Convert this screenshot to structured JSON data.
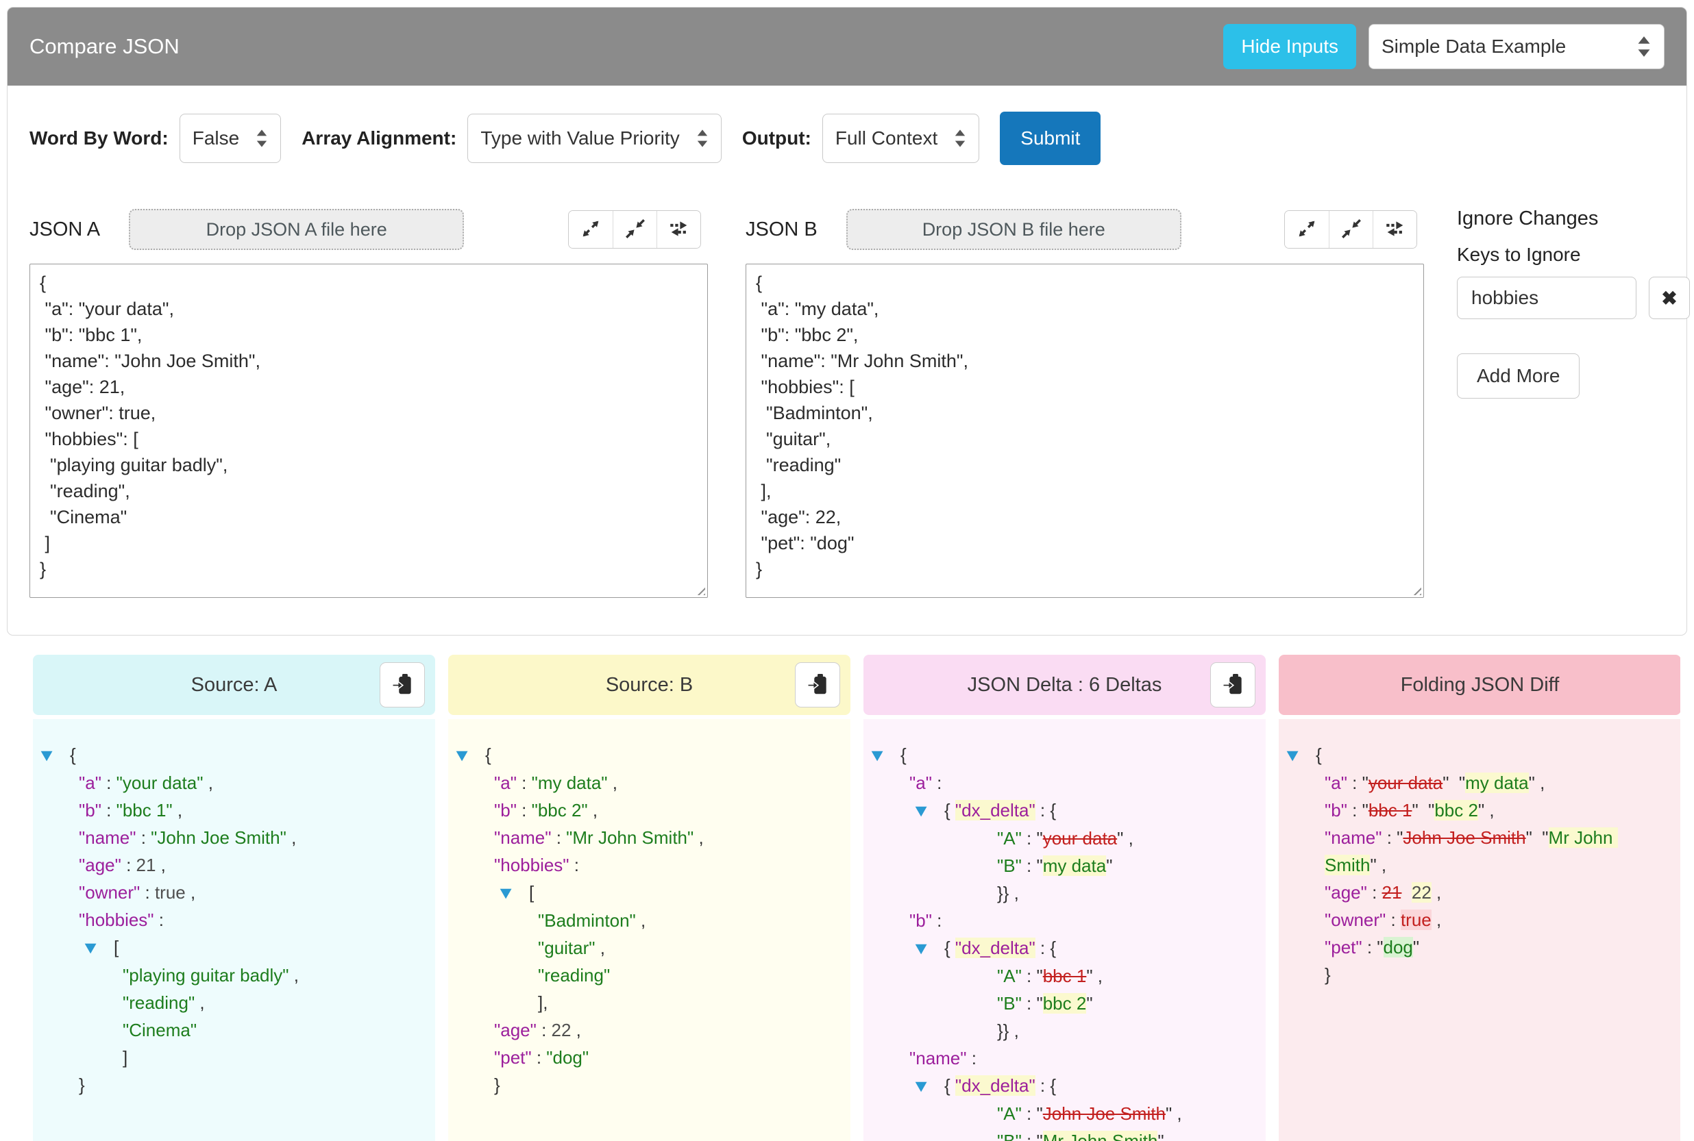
{
  "header": {
    "title": "Compare JSON",
    "hide_inputs": "Hide Inputs",
    "example_value": "Simple Data Example"
  },
  "controls": {
    "word_label": "Word By Word:",
    "word_value": "False",
    "array_label": "Array Alignment:",
    "array_value": "Type with Value Priority",
    "output_label": "Output:",
    "output_value": "Full Context",
    "submit": "Submit"
  },
  "json_a": {
    "label": "JSON A",
    "dropzone": "Drop JSON A file here",
    "content": "{\n \"a\": \"your data\",\n \"b\": \"bbc 1\",\n \"name\": \"John Joe Smith\",\n \"age\": 21,\n \"owner\": true,\n \"hobbies\": [\n  \"playing guitar badly\",\n  \"reading\",\n  \"Cinema\"\n ]\n}"
  },
  "json_b": {
    "label": "JSON B",
    "dropzone": "Drop JSON B file here",
    "content": "{\n \"a\": \"my data\",\n \"b\": \"bbc 2\",\n \"name\": \"Mr John Smith\",\n \"hobbies\": [\n  \"Badminton\",\n  \"guitar\",\n  \"reading\"\n ],\n \"age\": 22,\n \"pet\": \"dog\"\n}"
  },
  "ignore": {
    "title": "Ignore Changes",
    "keys_label": "Keys to Ignore",
    "value": "hobbies",
    "remove_glyph": "✖",
    "add_more": "Add More"
  },
  "panels": {
    "source_a": {
      "title": "Source: A"
    },
    "source_b": {
      "title": "Source: B"
    },
    "delta": {
      "title": "JSON Delta : 6 Deltas",
      "delta_count": 6
    },
    "folding": {
      "title": "Folding JSON Diff"
    }
  },
  "icons": {
    "fold": "▼",
    "expand": "expand-diagonal-arrows",
    "collapse": "collapse-diagonal-arrows",
    "swap": "swap-horizontal-arrows",
    "copy": "clipboard-arrow",
    "select": "up-down-arrows"
  },
  "colors": {
    "titlebar": "#8b8b8b",
    "hide_inputs": "#2cc0e9",
    "submit": "#1577bb",
    "source_a_header": "#d9f6f8",
    "source_b_header": "#fcf8c9",
    "delta_header": "#fadcf3",
    "folding_header": "#f8bfca",
    "key": "#9c1f9c",
    "string": "#1d7d1d",
    "deleted": "#c3201f",
    "highlight_yellow": "#fbf9cf",
    "highlight_green": "#d9f3d2",
    "highlight_red": "#fbd6da",
    "fold_triangle": "#2a9ad3"
  },
  "trees": {
    "source_a": [
      {
        "d": 0,
        "f": true,
        "t": [
          {
            "c": "p",
            "v": "{"
          }
        ]
      },
      {
        "d": 1,
        "t": [
          {
            "c": "k",
            "v": "\"a\""
          },
          {
            "c": "p",
            "v": " : "
          },
          {
            "c": "s",
            "v": "\"your data\""
          },
          {
            "c": "p",
            "v": " ,"
          }
        ]
      },
      {
        "d": 1,
        "t": [
          {
            "c": "k",
            "v": "\"b\""
          },
          {
            "c": "p",
            "v": " : "
          },
          {
            "c": "s",
            "v": "\"bbc 1\""
          },
          {
            "c": "p",
            "v": " ,"
          }
        ]
      },
      {
        "d": 1,
        "t": [
          {
            "c": "k",
            "v": "\"name\""
          },
          {
            "c": "p",
            "v": " : "
          },
          {
            "c": "s",
            "v": "\"John Joe Smith\""
          },
          {
            "c": "p",
            "v": " ,"
          }
        ]
      },
      {
        "d": 1,
        "t": [
          {
            "c": "k",
            "v": "\"age\""
          },
          {
            "c": "p",
            "v": " : "
          },
          {
            "c": "n",
            "v": "21"
          },
          {
            "c": "p",
            "v": " ,"
          }
        ]
      },
      {
        "d": 1,
        "t": [
          {
            "c": "k",
            "v": "\"owner\""
          },
          {
            "c": "p",
            "v": " : "
          },
          {
            "c": "n",
            "v": "true"
          },
          {
            "c": "p",
            "v": " ,"
          }
        ]
      },
      {
        "d": 1,
        "t": [
          {
            "c": "k",
            "v": "\"hobbies\""
          },
          {
            "c": "p",
            "v": " :"
          }
        ]
      },
      {
        "d": 1,
        "f": true,
        "t": [
          {
            "c": "p",
            "v": "["
          }
        ]
      },
      {
        "d": 2,
        "t": [
          {
            "c": "s",
            "v": "\"playing guitar badly\""
          },
          {
            "c": "p",
            "v": " ,"
          }
        ]
      },
      {
        "d": 2,
        "t": [
          {
            "c": "s",
            "v": "\"reading\""
          },
          {
            "c": "p",
            "v": " ,"
          }
        ]
      },
      {
        "d": 2,
        "t": [
          {
            "c": "s",
            "v": "\"Cinema\""
          }
        ]
      },
      {
        "d": 2,
        "t": [
          {
            "c": "p",
            "v": "]"
          }
        ]
      },
      {
        "d": 1,
        "t": [
          {
            "c": "p",
            "v": "}"
          }
        ]
      }
    ],
    "source_b": [
      {
        "d": 0,
        "f": true,
        "t": [
          {
            "c": "p",
            "v": "{"
          }
        ]
      },
      {
        "d": 1,
        "t": [
          {
            "c": "k",
            "v": "\"a\""
          },
          {
            "c": "p",
            "v": " : "
          },
          {
            "c": "s",
            "v": "\"my data\""
          },
          {
            "c": "p",
            "v": " ,"
          }
        ]
      },
      {
        "d": 1,
        "t": [
          {
            "c": "k",
            "v": "\"b\""
          },
          {
            "c": "p",
            "v": " : "
          },
          {
            "c": "s",
            "v": "\"bbc 2\""
          },
          {
            "c": "p",
            "v": " ,"
          }
        ]
      },
      {
        "d": 1,
        "t": [
          {
            "c": "k",
            "v": "\"name\""
          },
          {
            "c": "p",
            "v": " : "
          },
          {
            "c": "s",
            "v": "\"Mr John Smith\""
          },
          {
            "c": "p",
            "v": " ,"
          }
        ]
      },
      {
        "d": 1,
        "t": [
          {
            "c": "k",
            "v": "\"hobbies\""
          },
          {
            "c": "p",
            "v": " :"
          }
        ]
      },
      {
        "d": 1,
        "f": true,
        "t": [
          {
            "c": "p",
            "v": "["
          }
        ]
      },
      {
        "d": 2,
        "t": [
          {
            "c": "s",
            "v": "\"Badminton\""
          },
          {
            "c": "p",
            "v": " ,"
          }
        ]
      },
      {
        "d": 2,
        "t": [
          {
            "c": "s",
            "v": "\"guitar\""
          },
          {
            "c": "p",
            "v": " ,"
          }
        ]
      },
      {
        "d": 2,
        "t": [
          {
            "c": "s",
            "v": "\"reading\""
          }
        ]
      },
      {
        "d": 2,
        "t": [
          {
            "c": "p",
            "v": "],"
          }
        ]
      },
      {
        "d": 1,
        "t": [
          {
            "c": "k",
            "v": "\"age\""
          },
          {
            "c": "p",
            "v": " : "
          },
          {
            "c": "n",
            "v": "22"
          },
          {
            "c": "p",
            "v": " ,"
          }
        ]
      },
      {
        "d": 1,
        "t": [
          {
            "c": "k",
            "v": "\"pet\""
          },
          {
            "c": "p",
            "v": " : "
          },
          {
            "c": "s",
            "v": "\"dog\""
          }
        ]
      },
      {
        "d": 1,
        "t": [
          {
            "c": "p",
            "v": "}"
          }
        ]
      }
    ],
    "delta": [
      {
        "d": 0,
        "f": true,
        "t": [
          {
            "c": "p",
            "v": "{"
          }
        ]
      },
      {
        "d": 1,
        "t": [
          {
            "c": "k",
            "v": "\"a\""
          },
          {
            "c": "p",
            "v": " :"
          }
        ]
      },
      {
        "d": 1,
        "f": true,
        "t": [
          {
            "c": "p",
            "v": "{ "
          },
          {
            "c": "k hy",
            "v": "\"dx_delta\""
          },
          {
            "c": "p",
            "v": " : {"
          }
        ]
      },
      {
        "d": 3,
        "t": [
          {
            "c": "s",
            "v": "\"A\""
          },
          {
            "c": "p",
            "v": " : \""
          },
          {
            "c": "del",
            "v": "your data"
          },
          {
            "c": "p",
            "v": "\" ,"
          }
        ]
      },
      {
        "d": 3,
        "t": [
          {
            "c": "s",
            "v": "\"B\""
          },
          {
            "c": "p",
            "v": " : \""
          },
          {
            "c": "s hy",
            "v": "my data"
          },
          {
            "c": "p",
            "v": "\""
          }
        ]
      },
      {
        "d": 3,
        "t": [
          {
            "c": "p",
            "v": "}} ,"
          }
        ]
      },
      {
        "d": 1,
        "t": [
          {
            "c": "k",
            "v": "\"b\""
          },
          {
            "c": "p",
            "v": " :"
          }
        ]
      },
      {
        "d": 1,
        "f": true,
        "t": [
          {
            "c": "p",
            "v": "{ "
          },
          {
            "c": "k hy",
            "v": "\"dx_delta\""
          },
          {
            "c": "p",
            "v": " : {"
          }
        ]
      },
      {
        "d": 3,
        "t": [
          {
            "c": "s",
            "v": "\"A\""
          },
          {
            "c": "p",
            "v": " : \""
          },
          {
            "c": "del",
            "v": "bbc 1"
          },
          {
            "c": "p",
            "v": "\" ,"
          }
        ]
      },
      {
        "d": 3,
        "t": [
          {
            "c": "s",
            "v": "\"B\""
          },
          {
            "c": "p",
            "v": " : \""
          },
          {
            "c": "s hy",
            "v": "bbc 2"
          },
          {
            "c": "p",
            "v": "\""
          }
        ]
      },
      {
        "d": 3,
        "t": [
          {
            "c": "p",
            "v": "}} ,"
          }
        ]
      },
      {
        "d": 1,
        "t": [
          {
            "c": "k",
            "v": "\"name\""
          },
          {
            "c": "p",
            "v": " :"
          }
        ]
      },
      {
        "d": 1,
        "f": true,
        "t": [
          {
            "c": "p",
            "v": "{ "
          },
          {
            "c": "k hy",
            "v": "\"dx_delta\""
          },
          {
            "c": "p",
            "v": " : {"
          }
        ]
      },
      {
        "d": 3,
        "t": [
          {
            "c": "s",
            "v": "\"A\""
          },
          {
            "c": "p",
            "v": " : \""
          },
          {
            "c": "del",
            "v": "John Joe Smith"
          },
          {
            "c": "p",
            "v": "\" ,"
          }
        ]
      },
      {
        "d": 3,
        "t": [
          {
            "c": "s",
            "v": "\"B\""
          },
          {
            "c": "p",
            "v": " : \""
          },
          {
            "c": "s hy",
            "v": "Mr John Smith"
          },
          {
            "c": "p",
            "v": "\""
          }
        ]
      }
    ],
    "folding": [
      {
        "d": 0,
        "f": true,
        "t": [
          {
            "c": "p",
            "v": "{"
          }
        ]
      },
      {
        "d": 1,
        "t": [
          {
            "c": "k",
            "v": "\"a\""
          },
          {
            "c": "p",
            "v": " : \""
          },
          {
            "c": "del",
            "v": "your data"
          },
          {
            "c": "p",
            "v": "\"  \""
          },
          {
            "c": "s hy",
            "v": "my data"
          },
          {
            "c": "p",
            "v": "\" ,"
          }
        ]
      },
      {
        "d": 1,
        "t": [
          {
            "c": "k",
            "v": "\"b\""
          },
          {
            "c": "p",
            "v": " : \""
          },
          {
            "c": "del",
            "v": "bbc 1"
          },
          {
            "c": "p",
            "v": "\"  \""
          },
          {
            "c": "s hy",
            "v": "bbc 2"
          },
          {
            "c": "p",
            "v": "\" ,"
          }
        ]
      },
      {
        "d": 1,
        "t": [
          {
            "c": "k",
            "v": "\"name\""
          },
          {
            "c": "p",
            "v": " : \""
          },
          {
            "c": "del",
            "v": "John Joe Smith"
          },
          {
            "c": "p",
            "v": "\"  \""
          },
          {
            "c": "s hy",
            "v": "Mr John Smith"
          },
          {
            "c": "p",
            "v": "\" ,"
          }
        ]
      },
      {
        "d": 1,
        "t": [
          {
            "c": "k",
            "v": "\"age\""
          },
          {
            "c": "p",
            "v": " : "
          },
          {
            "c": "del",
            "v": "21"
          },
          {
            "c": "p",
            "v": "  "
          },
          {
            "c": "n hy",
            "v": "22"
          },
          {
            "c": "p",
            "v": " ,"
          }
        ]
      },
      {
        "d": 1,
        "t": [
          {
            "c": "k",
            "v": "\"owner\""
          },
          {
            "c": "p",
            "v": " : "
          },
          {
            "c": "r hr",
            "v": "true"
          },
          {
            "c": "p",
            "v": " ,"
          }
        ]
      },
      {
        "d": 1,
        "t": [
          {
            "c": "k",
            "v": "\"pet\""
          },
          {
            "c": "p",
            "v": " : \""
          },
          {
            "c": "s hg",
            "v": "dog"
          },
          {
            "c": "p",
            "v": "\""
          }
        ]
      },
      {
        "d": 1,
        "t": [
          {
            "c": "p",
            "v": "}"
          }
        ]
      }
    ]
  }
}
